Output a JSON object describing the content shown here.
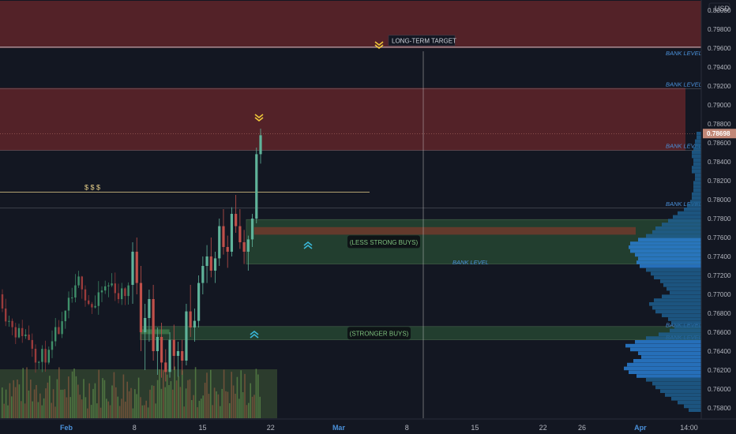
{
  "currency_label": "USD",
  "price_axis": {
    "ticks": [
      "0.80000",
      "0.79800",
      "0.79600",
      "0.79400",
      "0.79200",
      "0.79000",
      "0.78800",
      "0.78600",
      "0.78400",
      "0.78200",
      "0.78000",
      "0.77800",
      "0.77600",
      "0.77400",
      "0.77200",
      "0.77000",
      "0.76800",
      "0.76600",
      "0.76400",
      "0.76200",
      "0.76000",
      "0.75800"
    ],
    "current_price": "0.78698"
  },
  "time_axis": {
    "labels": [
      {
        "text": "Feb",
        "day": 0,
        "month": true
      },
      {
        "text": "8",
        "day": 7,
        "month": false
      },
      {
        "text": "15",
        "day": 14,
        "month": false
      },
      {
        "text": "22",
        "day": 21,
        "month": false
      },
      {
        "text": "Mar",
        "day": 28,
        "month": true
      },
      {
        "text": "8",
        "day": 35,
        "month": false
      },
      {
        "text": "15",
        "day": 42,
        "month": false
      },
      {
        "text": "22",
        "day": 49,
        "month": false
      },
      {
        "text": "26",
        "day": 53,
        "month": false
      },
      {
        "text": "Apr",
        "day": 59,
        "month": true
      },
      {
        "text": "14:00",
        "day": 64,
        "month": false
      }
    ]
  },
  "zones": [
    {
      "type": "resistance",
      "price_top": 0.801,
      "price_bottom": 0.796
    },
    {
      "type": "resistance",
      "price_top": 0.7918,
      "price_bottom": 0.7852
    },
    {
      "type": "buy",
      "label": "(LESS STRONG BUYS)",
      "price_top": 0.7779,
      "price_bottom": 0.7732,
      "day_start": 18.5,
      "day_end": 66
    },
    {
      "type": "buy",
      "label": "(STRONGER BUYS)",
      "price_top": 0.7666,
      "price_bottom": 0.7652,
      "day_start": 7.6,
      "day_end": 66
    }
  ],
  "levels": [
    {
      "label": "LONG-TERM TARGET",
      "price": 0.7961
    },
    {
      "label": "BANK LEVEL",
      "price": 0.795
    },
    {
      "label": "BANK LEVEL",
      "price": 0.7917
    },
    {
      "label": "BANK LEVEL",
      "price": 0.7852
    },
    {
      "label": "BANK LEVEL",
      "price": 0.7791
    },
    {
      "label": "BANK LEVEL",
      "price": 0.7729
    },
    {
      "label": "BANK LEVEL",
      "price": 0.7663
    },
    {
      "label": "BANK LEVEL",
      "price": 0.765
    }
  ],
  "dollar_marker": {
    "text": "$ $ $",
    "price": 0.7808
  },
  "chart_data": {
    "type": "candlestick",
    "title": "",
    "x_unit": "trading days from Feb 1",
    "y_range": [
      0.7575,
      0.801
    ],
    "candles_ohlc": [
      [
        0.771,
        0.7755,
        0.769,
        0.7745
      ],
      [
        0.7745,
        0.776,
        0.77,
        0.7712
      ],
      [
        0.7712,
        0.773,
        0.764,
        0.766
      ],
      [
        0.766,
        0.769,
        0.762,
        0.7675
      ],
      [
        0.7675,
        0.7705,
        0.765,
        0.7695
      ],
      [
        0.7695,
        0.771,
        0.763,
        0.764
      ],
      [
        0.764,
        0.7665,
        0.7615,
        0.7655
      ],
      [
        0.7655,
        0.767,
        0.7612,
        0.7628
      ],
      [
        0.7628,
        0.7642,
        0.7608,
        0.7618
      ],
      [
        0.7618,
        0.766,
        0.7612,
        0.7652
      ],
      [
        0.7652,
        0.7668,
        0.762,
        0.7635
      ],
      [
        0.7635,
        0.765,
        0.7613,
        0.764
      ],
      [
        0.764,
        0.7652,
        0.7615,
        0.763
      ],
      [
        0.763,
        0.769,
        0.7625,
        0.7682
      ],
      [
        0.7682,
        0.771,
        0.7655,
        0.7665
      ],
      [
        0.7665,
        0.7685,
        0.765,
        0.7672
      ],
      [
        0.7672,
        0.772,
        0.7665,
        0.7712
      ],
      [
        0.7712,
        0.774,
        0.77,
        0.773
      ],
      [
        0.773,
        0.7752,
        0.7712,
        0.774
      ],
      [
        0.774,
        0.776,
        0.7718,
        0.7725
      ],
      [
        0.7725,
        0.7745,
        0.7712,
        0.7738
      ],
      [
        0.7738,
        0.778,
        0.773,
        0.7772
      ],
      [
        0.7772,
        0.779,
        0.7742,
        0.775
      ],
      [
        0.775,
        0.7762,
        0.7728,
        0.7745
      ],
      [
        0.7745,
        0.7792,
        0.774,
        0.7785
      ],
      [
        0.7785,
        0.7805,
        0.7765,
        0.7772
      ],
      [
        0.7772,
        0.779,
        0.7748,
        0.7755
      ],
      [
        0.7755,
        0.7768,
        0.7732,
        0.7745
      ],
      [
        0.7745,
        0.7762,
        0.7725,
        0.7758
      ],
      [
        0.7758,
        0.7785,
        0.775,
        0.778
      ],
      [
        0.778,
        0.7855,
        0.7775,
        0.7848
      ],
      [
        0.7848,
        0.7875,
        0.7838,
        0.7868
      ]
    ],
    "volume_profile_y": [
      0.787,
      0.7866,
      0.7862,
      0.7858,
      0.7854,
      0.785,
      0.7846,
      0.7842,
      0.7838,
      0.7834,
      0.783,
      0.7826,
      0.7822,
      0.7818,
      0.7814,
      0.781,
      0.7806,
      0.7802,
      0.7798,
      0.7794,
      0.779,
      0.7786,
      0.7782,
      0.7778,
      0.7774,
      0.777,
      0.7766,
      0.7762,
      0.7758,
      0.7754,
      0.775,
      0.7746,
      0.7742,
      0.7738,
      0.7734,
      0.773,
      0.7726,
      0.7722,
      0.7718,
      0.7714,
      0.771,
      0.7706,
      0.7702,
      0.7698,
      0.7694,
      0.769,
      0.7686,
      0.7682,
      0.7678,
      0.7674,
      0.767,
      0.7666,
      0.7662,
      0.7658,
      0.7654,
      0.765,
      0.7646,
      0.7642,
      0.7638,
      0.7634,
      0.763,
      0.7626,
      0.7622,
      0.7618,
      0.7614,
      0.761,
      0.7606,
      0.7602,
      0.7598,
      0.7594,
      0.759,
      0.7586,
      0.7582,
      0.7578
    ],
    "volume_profile_x": [
      6,
      6,
      8,
      8,
      10,
      12,
      12,
      10,
      10,
      12,
      12,
      8,
      8,
      10,
      10,
      10,
      12,
      12,
      14,
      18,
      22,
      30,
      36,
      42,
      50,
      58,
      62,
      70,
      80,
      90,
      92,
      90,
      84,
      80,
      82,
      78,
      70,
      64,
      60,
      52,
      48,
      44,
      40,
      50,
      60,
      66,
      62,
      58,
      50,
      42,
      38,
      34,
      40,
      54,
      70,
      84,
      96,
      90,
      80,
      76,
      86,
      94,
      98,
      92,
      82,
      70,
      62,
      58,
      52,
      46,
      38,
      30,
      22,
      16
    ]
  }
}
